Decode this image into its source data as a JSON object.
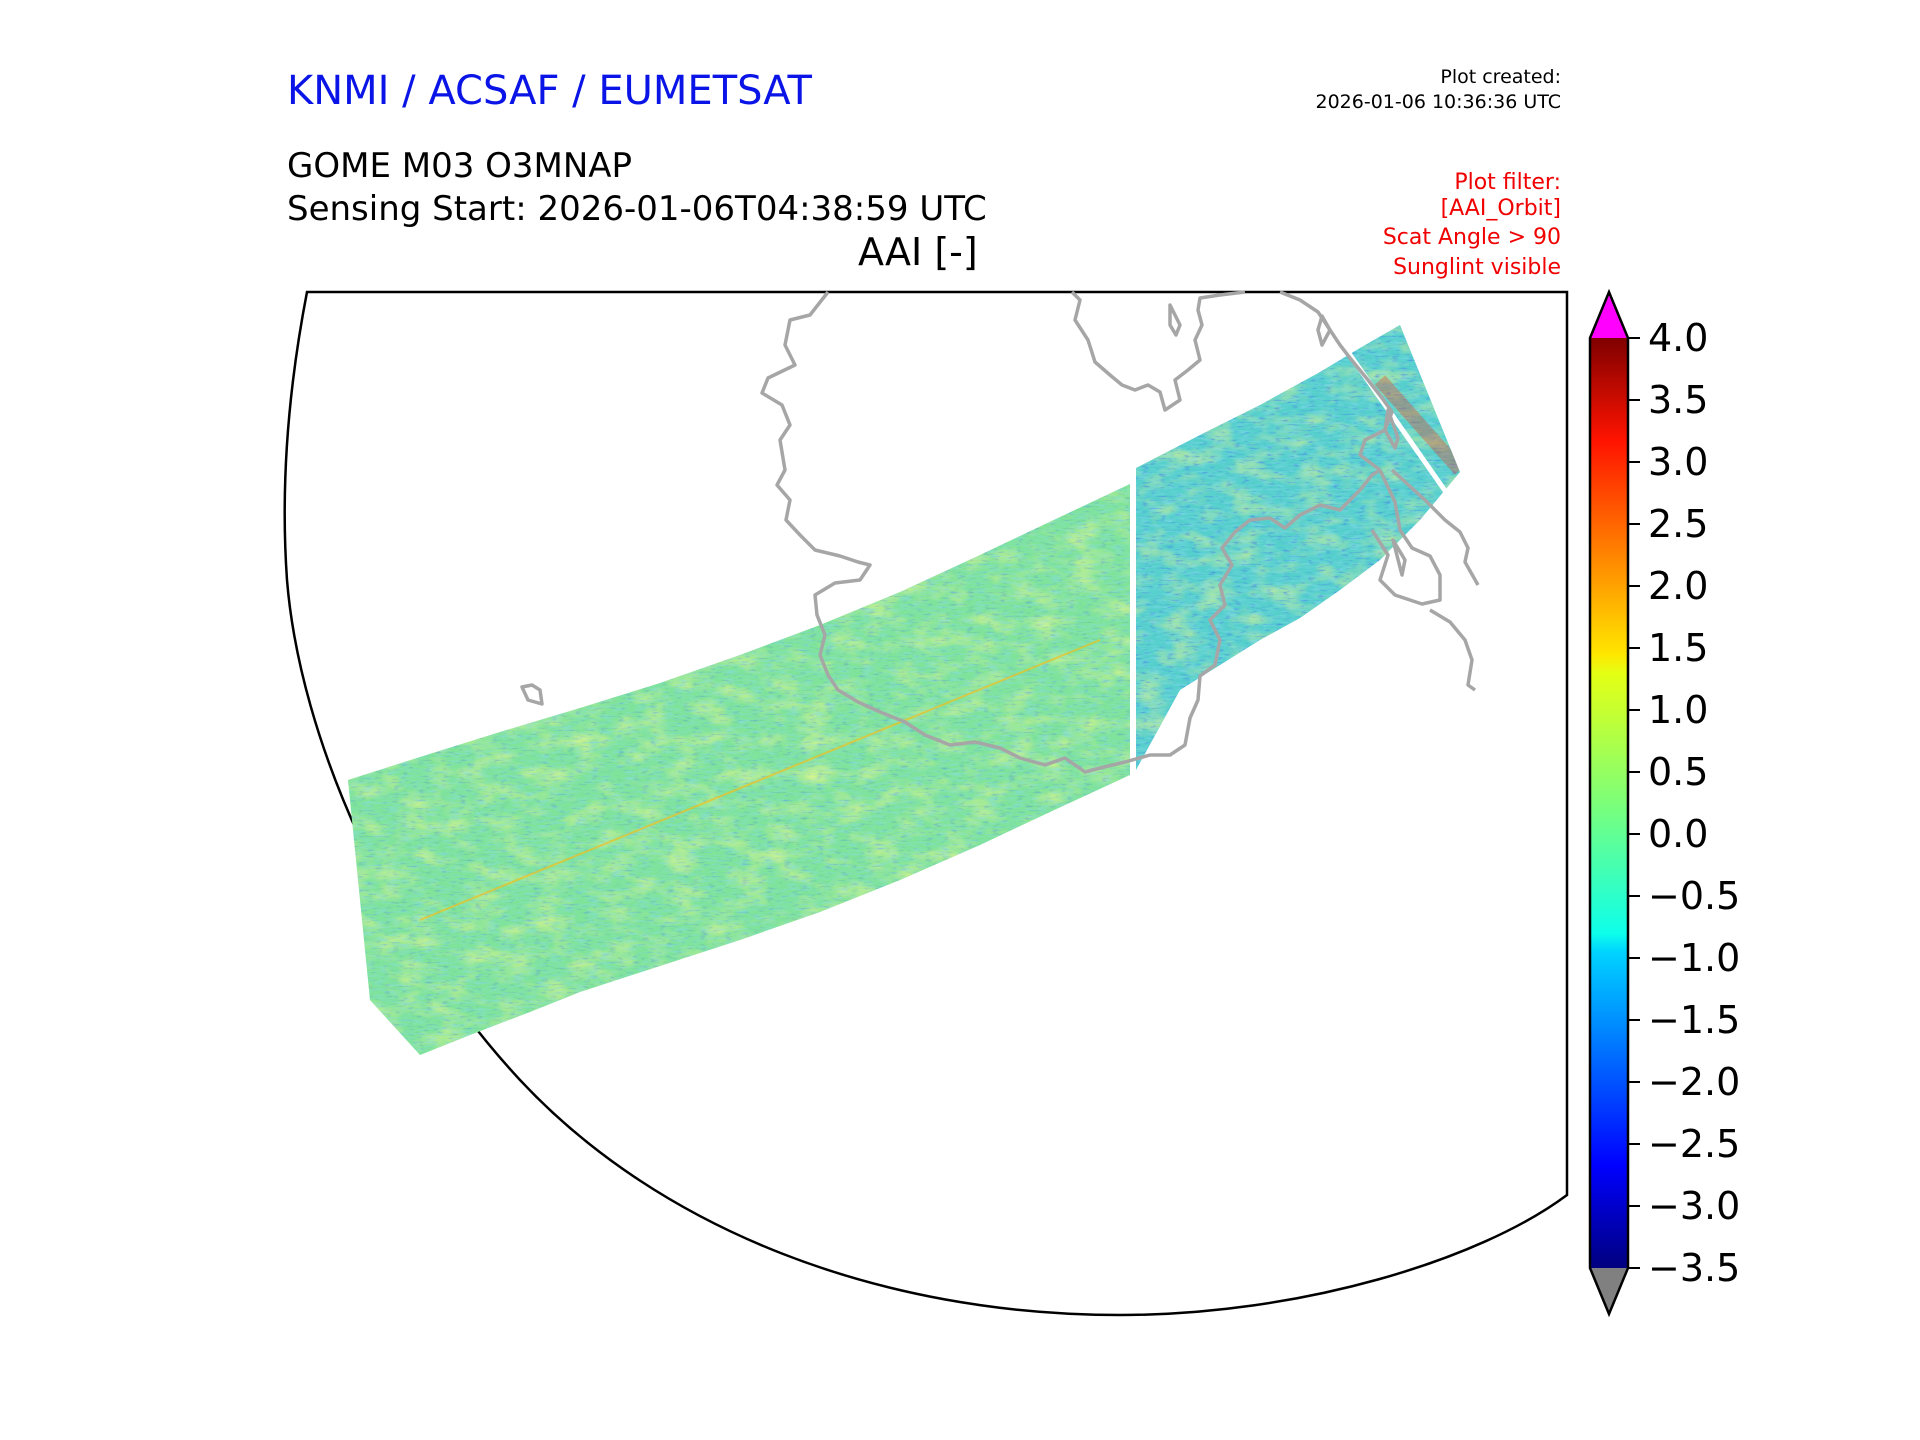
{
  "header": {
    "organization": "KNMI / ACSAF / EUMETSAT",
    "plot_created_label": "Plot created:",
    "plot_created_value": "2026-01-06 10:36:36 UTC",
    "product": "GOME M03 O3MNAP",
    "sensing_start": "Sensing Start: 2026-01-06T04:38:59 UTC",
    "variable_title": "AAI [-]",
    "filter_label": "Plot filter:",
    "filters": [
      "[AAI_Orbit]",
      "Scat Angle > 90",
      "Sunglint visible"
    ]
  },
  "colors": {
    "organization_text": "#0a14e6",
    "filter_text": "#f00000",
    "coastline": "#a6a6a6",
    "over_range": "#ff00ff",
    "under_range": "#808080"
  },
  "colorbar": {
    "min": -3.5,
    "max": 4.0,
    "extend": "both",
    "colormap": "jet",
    "ticks": [
      "4.0",
      "3.5",
      "3.0",
      "2.5",
      "2.0",
      "1.5",
      "1.0",
      "0.5",
      "0.0",
      "−0.5",
      "−1.0",
      "−1.5",
      "−2.0",
      "−2.5",
      "−3.0",
      "−3.5"
    ]
  }
}
